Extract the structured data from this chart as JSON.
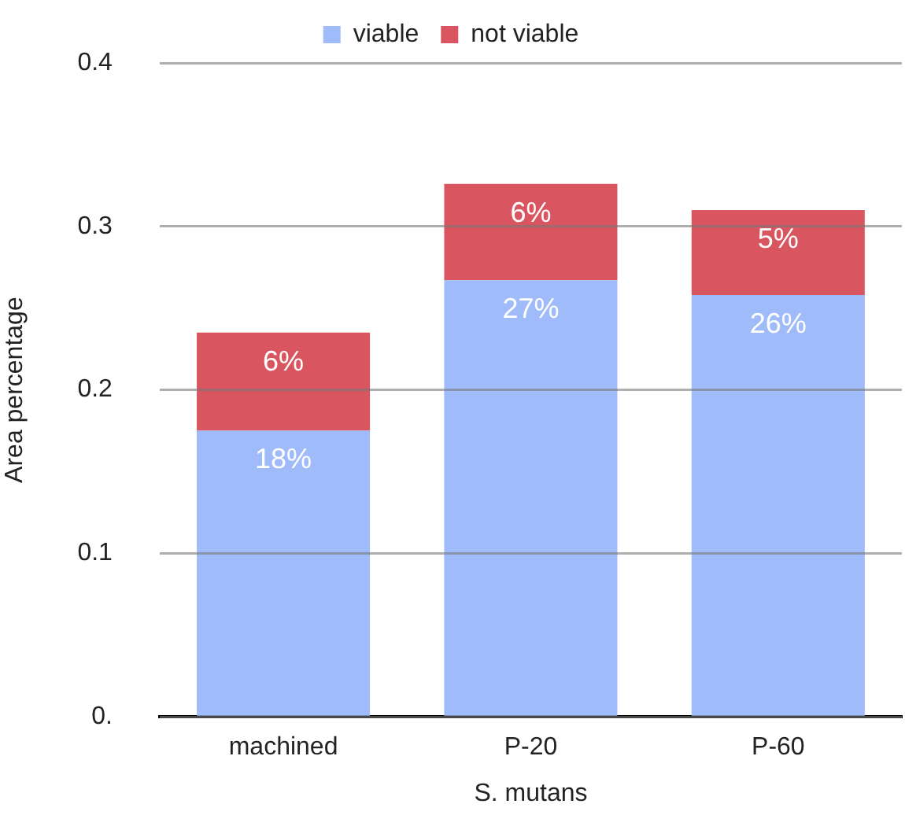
{
  "chart_data": {
    "type": "bar",
    "stacked": true,
    "xlabel": "S. mutans",
    "ylabel": "Area percentage",
    "categories": [
      "machined",
      "P-20",
      "P-60"
    ],
    "series": [
      {
        "name": "viable",
        "color": "#a0bbf9",
        "values": [
          0.175,
          0.267,
          0.258
        ],
        "value_labels": [
          "18%",
          "27%",
          "26%"
        ]
      },
      {
        "name": "not viable",
        "color": "#d9555f",
        "values": [
          0.06,
          0.059,
          0.052
        ],
        "value_labels": [
          "6%",
          "6%",
          "5%"
        ]
      }
    ],
    "ylim": [
      0,
      0.4
    ],
    "yticks": [
      {
        "value": 0,
        "label": "0."
      },
      0.1,
      0.2,
      0.3,
      0.4
    ],
    "grid": "y",
    "legend": "top"
  }
}
